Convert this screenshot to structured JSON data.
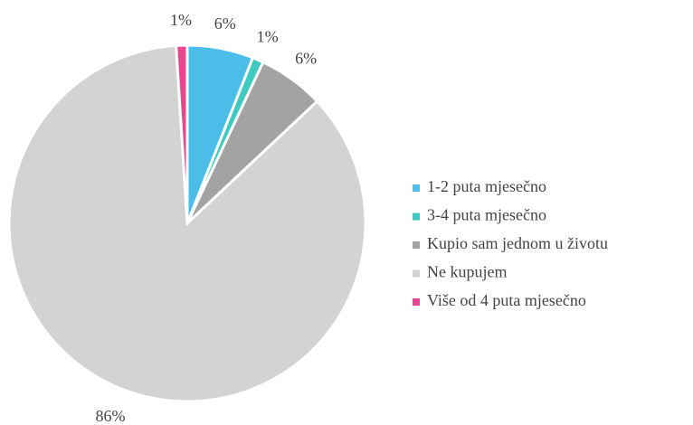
{
  "chart_data": {
    "type": "pie",
    "categories": [
      "1-2 puta mjesečno",
      "3-4 puta mjesečno",
      "Kupio sam jednom u životu",
      "Ne kupujem",
      "Više od 4 puta mjesečno"
    ],
    "values": [
      6,
      1,
      6,
      86,
      1
    ],
    "value_labels": [
      "6%",
      "1%",
      "6%",
      "86%",
      "1%"
    ],
    "colors": [
      "#4bbde9",
      "#3ec9c1",
      "#a3a3a3",
      "#d4d3d4",
      "#e9468f"
    ],
    "legend": "right"
  }
}
